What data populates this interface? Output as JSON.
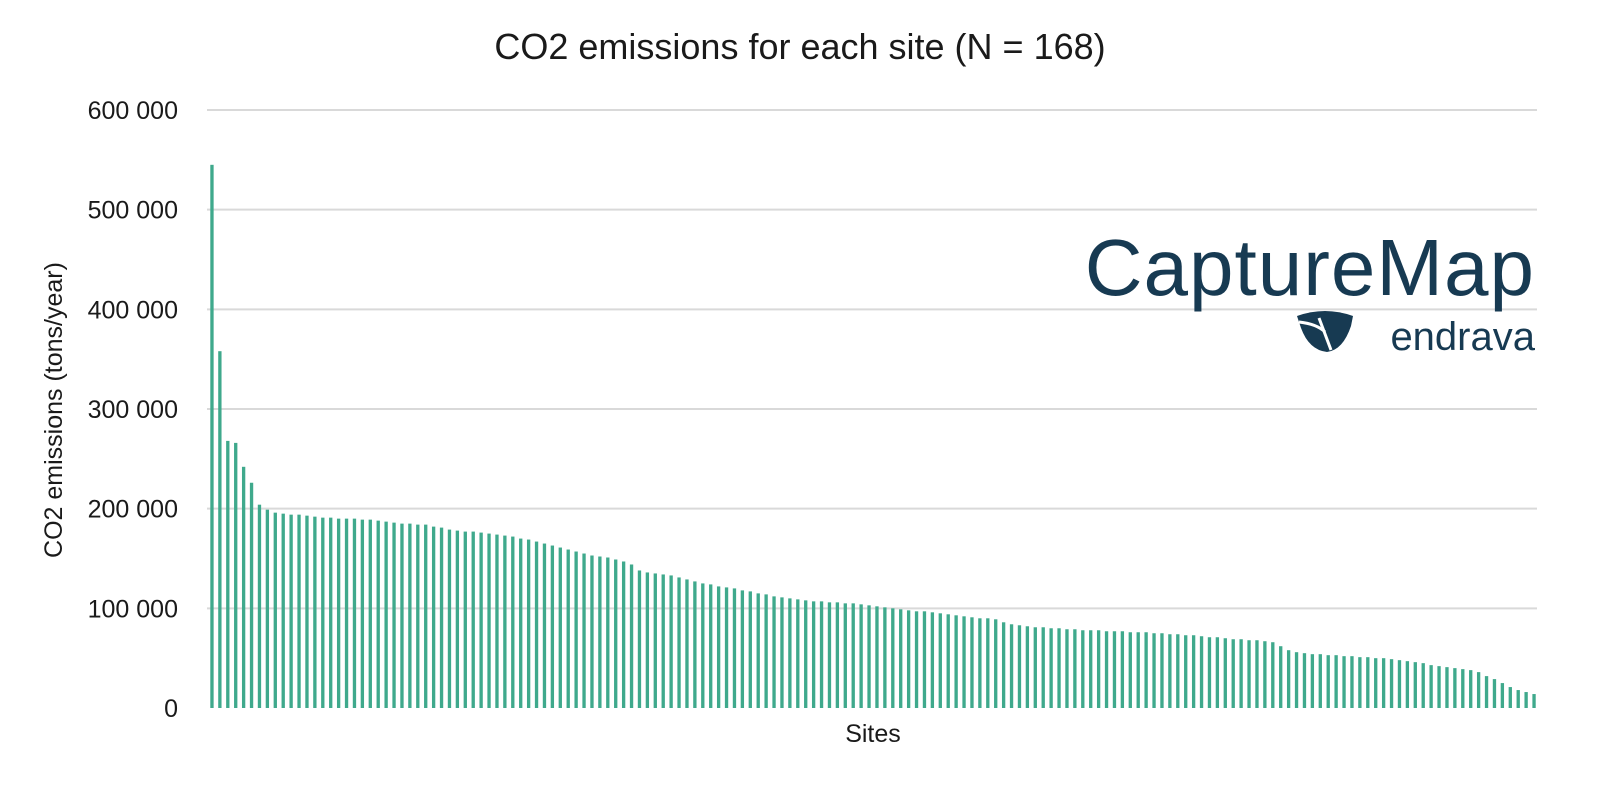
{
  "chart_data": {
    "type": "bar",
    "title": "CO2 emissions for each site (N = 168)",
    "xlabel": "Sites",
    "ylabel": "CO2 emissions (tons/year)",
    "ylim": [
      0,
      600000
    ],
    "yticks": [
      "0",
      "100 000",
      "200 000",
      "300 000",
      "400 000",
      "500 000",
      "600 000"
    ],
    "ytick_values": [
      0,
      100000,
      200000,
      300000,
      400000,
      500000,
      600000
    ],
    "grid": true,
    "bar_color": "#3fa98c",
    "grid_color": "#d9d9d9",
    "values": [
      545000,
      358000,
      268000,
      266000,
      242000,
      226000,
      204000,
      199000,
      196000,
      195000,
      194000,
      194000,
      193000,
      192000,
      191000,
      191000,
      190000,
      190000,
      190000,
      189000,
      189000,
      188000,
      187000,
      186000,
      185000,
      185000,
      184000,
      184000,
      182000,
      181000,
      179000,
      178000,
      177000,
      177000,
      176000,
      175000,
      174000,
      173000,
      172000,
      170000,
      169000,
      167000,
      165000,
      163000,
      161000,
      159000,
      157000,
      155000,
      153000,
      152000,
      151000,
      149000,
      147000,
      144000,
      138000,
      136000,
      135000,
      134000,
      133000,
      131000,
      129000,
      127000,
      125000,
      124000,
      122000,
      121000,
      120000,
      118000,
      117000,
      115000,
      114000,
      112000,
      111000,
      110000,
      109000,
      108000,
      107000,
      107000,
      106000,
      106000,
      105000,
      105000,
      104000,
      103000,
      102000,
      101000,
      100000,
      99000,
      98000,
      97000,
      97000,
      96000,
      95000,
      94000,
      93000,
      92000,
      91000,
      90000,
      90000,
      89000,
      86000,
      84000,
      83000,
      82000,
      81000,
      81000,
      80000,
      80000,
      79000,
      79000,
      78000,
      78000,
      78000,
      77000,
      77000,
      77000,
      76000,
      76000,
      76000,
      75000,
      75000,
      74000,
      74000,
      73000,
      73000,
      72000,
      71000,
      71000,
      70000,
      69000,
      69000,
      68000,
      68000,
      67000,
      66000,
      62000,
      58000,
      56000,
      55000,
      54000,
      54000,
      53000,
      53000,
      52000,
      52000,
      51000,
      51000,
      50000,
      50000,
      49000,
      48000,
      47000,
      46000,
      45000,
      43000,
      42000,
      41000,
      40000,
      39000,
      38000,
      36000,
      32000,
      29000,
      25000,
      21000,
      18000,
      16000,
      14000
    ]
  },
  "logo": {
    "name": "CaptureMap",
    "brand": "endrava",
    "color": "#173a52"
  }
}
